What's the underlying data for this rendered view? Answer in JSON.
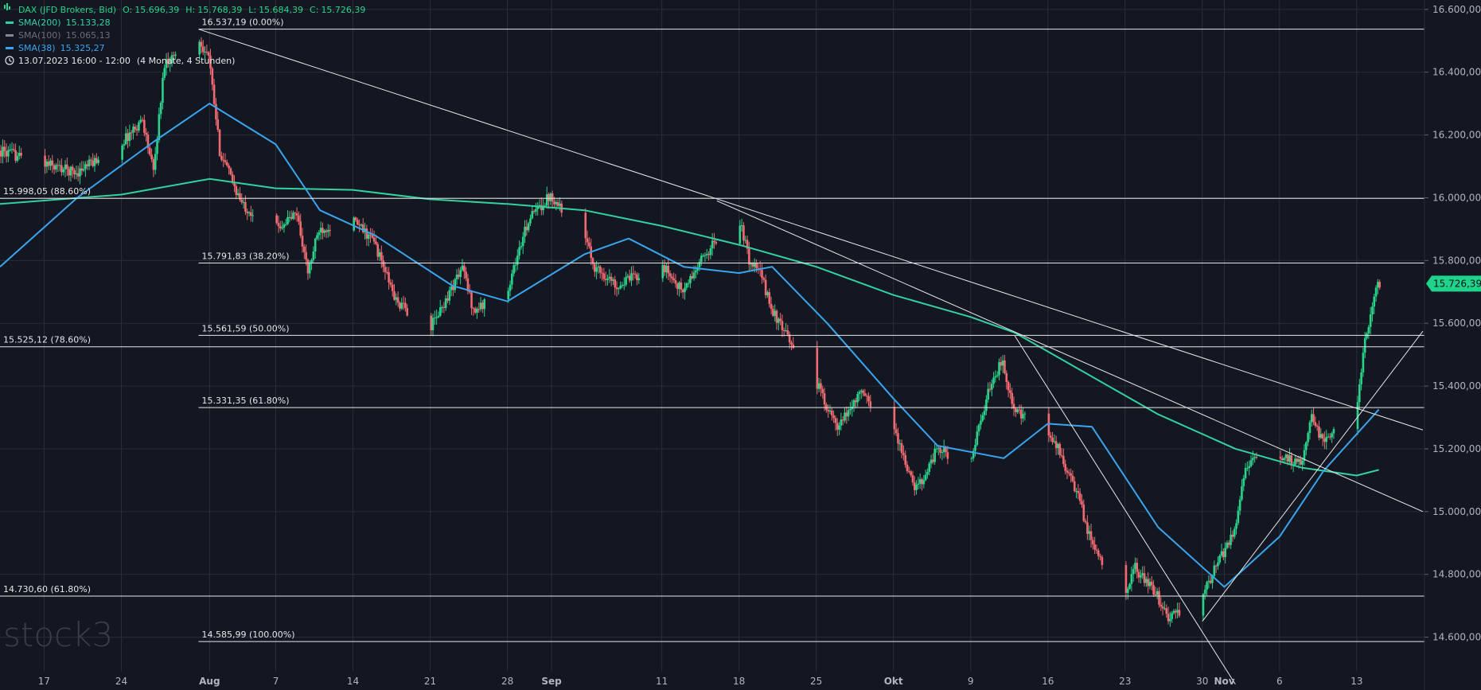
{
  "header": {
    "instrument": "DAX (JFD Brokers, Bid)",
    "ohlc": [
      {
        "label": "O:",
        "value": "15.696,39"
      },
      {
        "label": "H:",
        "value": "15.768,39"
      },
      {
        "label": "L:",
        "value": "15.684,39"
      },
      {
        "label": "C:",
        "value": "15.726,39"
      }
    ],
    "indicators": [
      {
        "name": "SMA(200)",
        "value": "15.133,28",
        "color": "#34d1a0"
      },
      {
        "name": "SMA(100)",
        "value": "15.065,13",
        "color": "#8a8a8a"
      },
      {
        "name": "SMA(38)",
        "value": "15.325,27",
        "color": "#3aa5ee"
      }
    ],
    "period": "13.07.2023 16:00 - 12:00",
    "period_note": "(4 Monate, 4 Stunden)"
  },
  "colors": {
    "background": "#131722",
    "grid": "#2a2e39",
    "up": "#2bd28a",
    "down": "#f06a70",
    "sma200": "#34d1a0",
    "sma38": "#3aa5ee",
    "level": "#e8e8e8",
    "last_price_bg": "#1fd38b"
  },
  "watermark": "stock3",
  "last_price": "15.726,39",
  "chart_data": {
    "type": "candlestick",
    "yaxis": {
      "range": [
        14500,
        16630
      ],
      "ticks": [
        14600,
        14800,
        15000,
        15200,
        15400,
        15600,
        15800,
        16000,
        16200,
        16400,
        16600
      ],
      "tick_labels": [
        "14.600,00",
        "14.800,00",
        "15.000,00",
        "15.200,00",
        "15.400,00",
        "15.600,00",
        "15.800,00",
        "16.000,00",
        "16.200,00",
        "16.400,00",
        "16.600,00"
      ]
    },
    "xaxis": {
      "range": [
        "2023-07-13",
        "2023-11-19"
      ],
      "ticks": [
        {
          "date": "2023-07-17",
          "label": "17",
          "bold": false
        },
        {
          "date": "2023-07-24",
          "label": "24",
          "bold": false
        },
        {
          "date": "2023-08-01",
          "label": "Aug",
          "bold": true
        },
        {
          "date": "2023-08-07",
          "label": "7",
          "bold": false
        },
        {
          "date": "2023-08-14",
          "label": "14",
          "bold": false
        },
        {
          "date": "2023-08-21",
          "label": "21",
          "bold": false
        },
        {
          "date": "2023-08-28",
          "label": "28",
          "bold": false
        },
        {
          "date": "2023-09-01",
          "label": "Sep",
          "bold": true
        },
        {
          "date": "2023-09-11",
          "label": "11",
          "bold": false
        },
        {
          "date": "2023-09-18",
          "label": "18",
          "bold": false
        },
        {
          "date": "2023-09-25",
          "label": "25",
          "bold": false
        },
        {
          "date": "2023-10-02",
          "label": "Okt",
          "bold": true
        },
        {
          "date": "2023-10-09",
          "label": "9",
          "bold": false
        },
        {
          "date": "2023-10-16",
          "label": "16",
          "bold": false
        },
        {
          "date": "2023-10-23",
          "label": "23",
          "bold": false
        },
        {
          "date": "2023-10-30",
          "label": "30",
          "bold": false
        },
        {
          "date": "2023-11-01",
          "label": "Nov",
          "bold": true
        },
        {
          "date": "2023-11-06",
          "label": "6",
          "bold": false
        },
        {
          "date": "2023-11-13",
          "label": "13",
          "bold": false
        }
      ]
    },
    "price_path": [
      {
        "date": "2023-07-13",
        "price": 16150
      },
      {
        "date": "2023-07-17",
        "price": 16110
      },
      {
        "date": "2023-07-20",
        "price": 16080
      },
      {
        "date": "2023-07-24",
        "price": 16170
      },
      {
        "date": "2023-07-26",
        "price": 16250
      },
      {
        "date": "2023-07-27",
        "price": 16080
      },
      {
        "date": "2023-07-28",
        "price": 16430
      },
      {
        "date": "2023-07-31",
        "price": 16510
      },
      {
        "date": "2023-08-01",
        "price": 16450
      },
      {
        "date": "2023-08-02",
        "price": 16150
      },
      {
        "date": "2023-08-04",
        "price": 15980
      },
      {
        "date": "2023-08-07",
        "price": 15900
      },
      {
        "date": "2023-08-09",
        "price": 15950
      },
      {
        "date": "2023-08-10",
        "price": 15760
      },
      {
        "date": "2023-08-11",
        "price": 15900
      },
      {
        "date": "2023-08-14",
        "price": 15930
      },
      {
        "date": "2023-08-16",
        "price": 15860
      },
      {
        "date": "2023-08-18",
        "price": 15670
      },
      {
        "date": "2023-08-21",
        "price": 15580
      },
      {
        "date": "2023-08-22",
        "price": 15640
      },
      {
        "date": "2023-08-24",
        "price": 15780
      },
      {
        "date": "2023-08-25",
        "price": 15640
      },
      {
        "date": "2023-08-28",
        "price": 15700
      },
      {
        "date": "2023-08-30",
        "price": 15930
      },
      {
        "date": "2023-09-01",
        "price": 16010
      },
      {
        "date": "2023-09-04",
        "price": 15880
      },
      {
        "date": "2023-09-05",
        "price": 15780
      },
      {
        "date": "2023-09-07",
        "price": 15720
      },
      {
        "date": "2023-09-11",
        "price": 15790
      },
      {
        "date": "2023-09-13",
        "price": 15700
      },
      {
        "date": "2023-09-15",
        "price": 15820
      },
      {
        "date": "2023-09-18",
        "price": 15950
      },
      {
        "date": "2023-09-19",
        "price": 15800
      },
      {
        "date": "2023-09-20",
        "price": 15760
      },
      {
        "date": "2023-09-21",
        "price": 15650
      },
      {
        "date": "2023-09-22",
        "price": 15580
      },
      {
        "date": "2023-09-25",
        "price": 15420
      },
      {
        "date": "2023-09-27",
        "price": 15260
      },
      {
        "date": "2023-09-29",
        "price": 15380
      },
      {
        "date": "2023-10-02",
        "price": 15280
      },
      {
        "date": "2023-10-04",
        "price": 15070
      },
      {
        "date": "2023-10-05",
        "price": 15120
      },
      {
        "date": "2023-10-06",
        "price": 15200
      },
      {
        "date": "2023-10-09",
        "price": 15150
      },
      {
        "date": "2023-10-11",
        "price": 15420
      },
      {
        "date": "2023-10-12",
        "price": 15480
      },
      {
        "date": "2023-10-13",
        "price": 15320
      },
      {
        "date": "2023-10-16",
        "price": 15250
      },
      {
        "date": "2023-10-17",
        "price": 15200
      },
      {
        "date": "2023-10-19",
        "price": 15030
      },
      {
        "date": "2023-10-20",
        "price": 14900
      },
      {
        "date": "2023-10-23",
        "price": 14740
      },
      {
        "date": "2023-10-24",
        "price": 14820
      },
      {
        "date": "2023-10-26",
        "price": 14730
      },
      {
        "date": "2023-10-27",
        "price": 14660
      },
      {
        "date": "2023-10-30",
        "price": 14720
      },
      {
        "date": "2023-10-31",
        "price": 14800
      },
      {
        "date": "2023-11-02",
        "price": 14940
      },
      {
        "date": "2023-11-03",
        "price": 15150
      },
      {
        "date": "2023-11-06",
        "price": 15180
      },
      {
        "date": "2023-11-08",
        "price": 15150
      },
      {
        "date": "2023-11-09",
        "price": 15310
      },
      {
        "date": "2023-11-10",
        "price": 15220
      },
      {
        "date": "2023-11-13",
        "price": 15320
      },
      {
        "date": "2023-11-14",
        "price": 15580
      },
      {
        "date": "2023-11-15",
        "price": 15726
      }
    ],
    "sma200": [
      {
        "date": "2023-07-13",
        "price": 15980
      },
      {
        "date": "2023-07-24",
        "price": 16010
      },
      {
        "date": "2023-08-01",
        "price": 16060
      },
      {
        "date": "2023-08-07",
        "price": 16030
      },
      {
        "date": "2023-08-14",
        "price": 16025
      },
      {
        "date": "2023-08-21",
        "price": 15995
      },
      {
        "date": "2023-08-28",
        "price": 15980
      },
      {
        "date": "2023-09-04",
        "price": 15960
      },
      {
        "date": "2023-09-11",
        "price": 15910
      },
      {
        "date": "2023-09-18",
        "price": 15850
      },
      {
        "date": "2023-09-25",
        "price": 15780
      },
      {
        "date": "2023-10-02",
        "price": 15690
      },
      {
        "date": "2023-10-09",
        "price": 15620
      },
      {
        "date": "2023-10-13",
        "price": 15570
      },
      {
        "date": "2023-10-19",
        "price": 15450
      },
      {
        "date": "2023-10-26",
        "price": 15310
      },
      {
        "date": "2023-11-02",
        "price": 15200
      },
      {
        "date": "2023-11-08",
        "price": 15140
      },
      {
        "date": "2023-11-13",
        "price": 15115
      },
      {
        "date": "2023-11-15",
        "price": 15133
      }
    ],
    "sma38": [
      {
        "date": "2023-07-13",
        "price": 15780
      },
      {
        "date": "2023-07-20",
        "price": 16000
      },
      {
        "date": "2023-07-27",
        "price": 16180
      },
      {
        "date": "2023-08-01",
        "price": 16300
      },
      {
        "date": "2023-08-07",
        "price": 16170
      },
      {
        "date": "2023-08-11",
        "price": 15960
      },
      {
        "date": "2023-08-16",
        "price": 15880
      },
      {
        "date": "2023-08-23",
        "price": 15720
      },
      {
        "date": "2023-08-28",
        "price": 15670
      },
      {
        "date": "2023-09-04",
        "price": 15820
      },
      {
        "date": "2023-09-08",
        "price": 15870
      },
      {
        "date": "2023-09-13",
        "price": 15780
      },
      {
        "date": "2023-09-18",
        "price": 15760
      },
      {
        "date": "2023-09-21",
        "price": 15780
      },
      {
        "date": "2023-09-26",
        "price": 15600
      },
      {
        "date": "2023-10-02",
        "price": 15360
      },
      {
        "date": "2023-10-06",
        "price": 15210
      },
      {
        "date": "2023-10-12",
        "price": 15170
      },
      {
        "date": "2023-10-16",
        "price": 15280
      },
      {
        "date": "2023-10-20",
        "price": 15270
      },
      {
        "date": "2023-10-26",
        "price": 14950
      },
      {
        "date": "2023-11-01",
        "price": 14760
      },
      {
        "date": "2023-11-06",
        "price": 14920
      },
      {
        "date": "2023-11-10",
        "price": 15130
      },
      {
        "date": "2023-11-15",
        "price": 15325
      }
    ],
    "levels": [
      {
        "value": 16537.19,
        "label": "16.537,19 (0.00%)",
        "start": "2023-07-31"
      },
      {
        "value": 15998.05,
        "label": "15.998,05 (88.60%)",
        "start": "2023-07-13"
      },
      {
        "value": 15791.83,
        "label": "15.791,83 (38.20%)",
        "start": "2023-07-31"
      },
      {
        "value": 15561.59,
        "label": "15.561,59 (50.00%)",
        "start": "2023-07-31"
      },
      {
        "value": 15525.12,
        "label": "15.525,12 (78.60%)",
        "start": "2023-07-13"
      },
      {
        "value": 15331.35,
        "label": "15.331,35 (61.80%)",
        "start": "2023-07-31"
      },
      {
        "value": 14730.6,
        "label": "14.730,60 (61.80%)",
        "start": "2023-07-13"
      },
      {
        "value": 14585.99,
        "label": "14.585,99 (100.00%)",
        "start": "2023-07-31"
      }
    ],
    "trendlines": [
      {
        "from": {
          "date": "2023-07-31",
          "price": 16537
        },
        "to": {
          "date": "2023-11-19",
          "price": 15260
        }
      },
      {
        "from": {
          "date": "2023-09-16",
          "price": 15990
        },
        "to": {
          "date": "2023-11-19",
          "price": 15000
        }
      },
      {
        "from": {
          "date": "2023-10-13",
          "price": 15560
        },
        "to": {
          "date": "2023-11-02",
          "price": 14450
        }
      },
      {
        "from": {
          "date": "2023-10-30",
          "price": 14650
        },
        "to": {
          "date": "2023-11-19",
          "price": 15575
        }
      }
    ]
  }
}
